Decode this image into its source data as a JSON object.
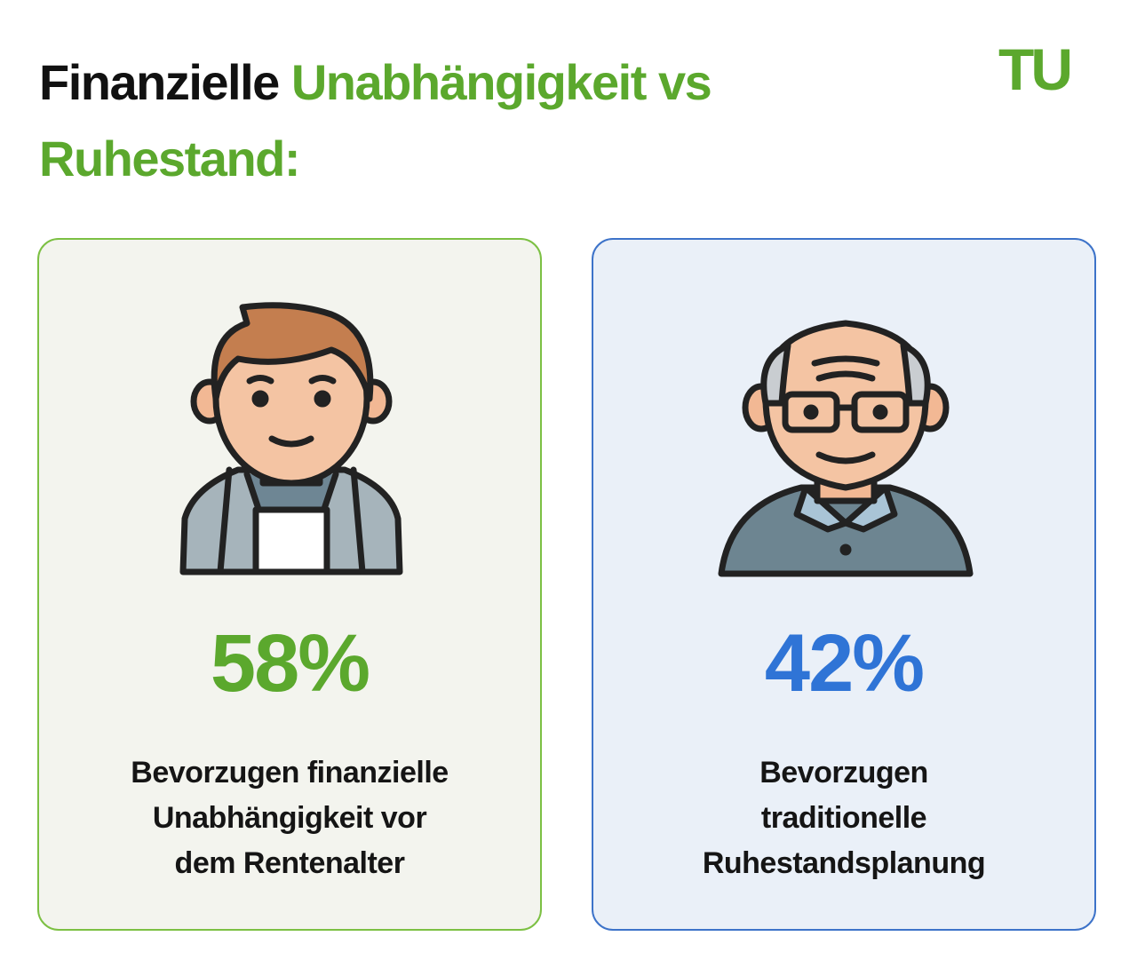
{
  "header": {
    "title": {
      "dark": "Finanzielle",
      "accent_lines": [
        "Unabhängigkeit vs",
        "Ruhestand:"
      ]
    },
    "logo": "TU"
  },
  "cards": [
    {
      "stat": "58%",
      "lines": [
        "Bevorzugen finanzielle",
        "Unabhängigkeit vor",
        "dem Rentenalter"
      ]
    },
    {
      "stat": "42%",
      "lines": [
        "Bevorzugen",
        "traditionelle",
        "Ruhestandsplanung"
      ]
    }
  ]
}
